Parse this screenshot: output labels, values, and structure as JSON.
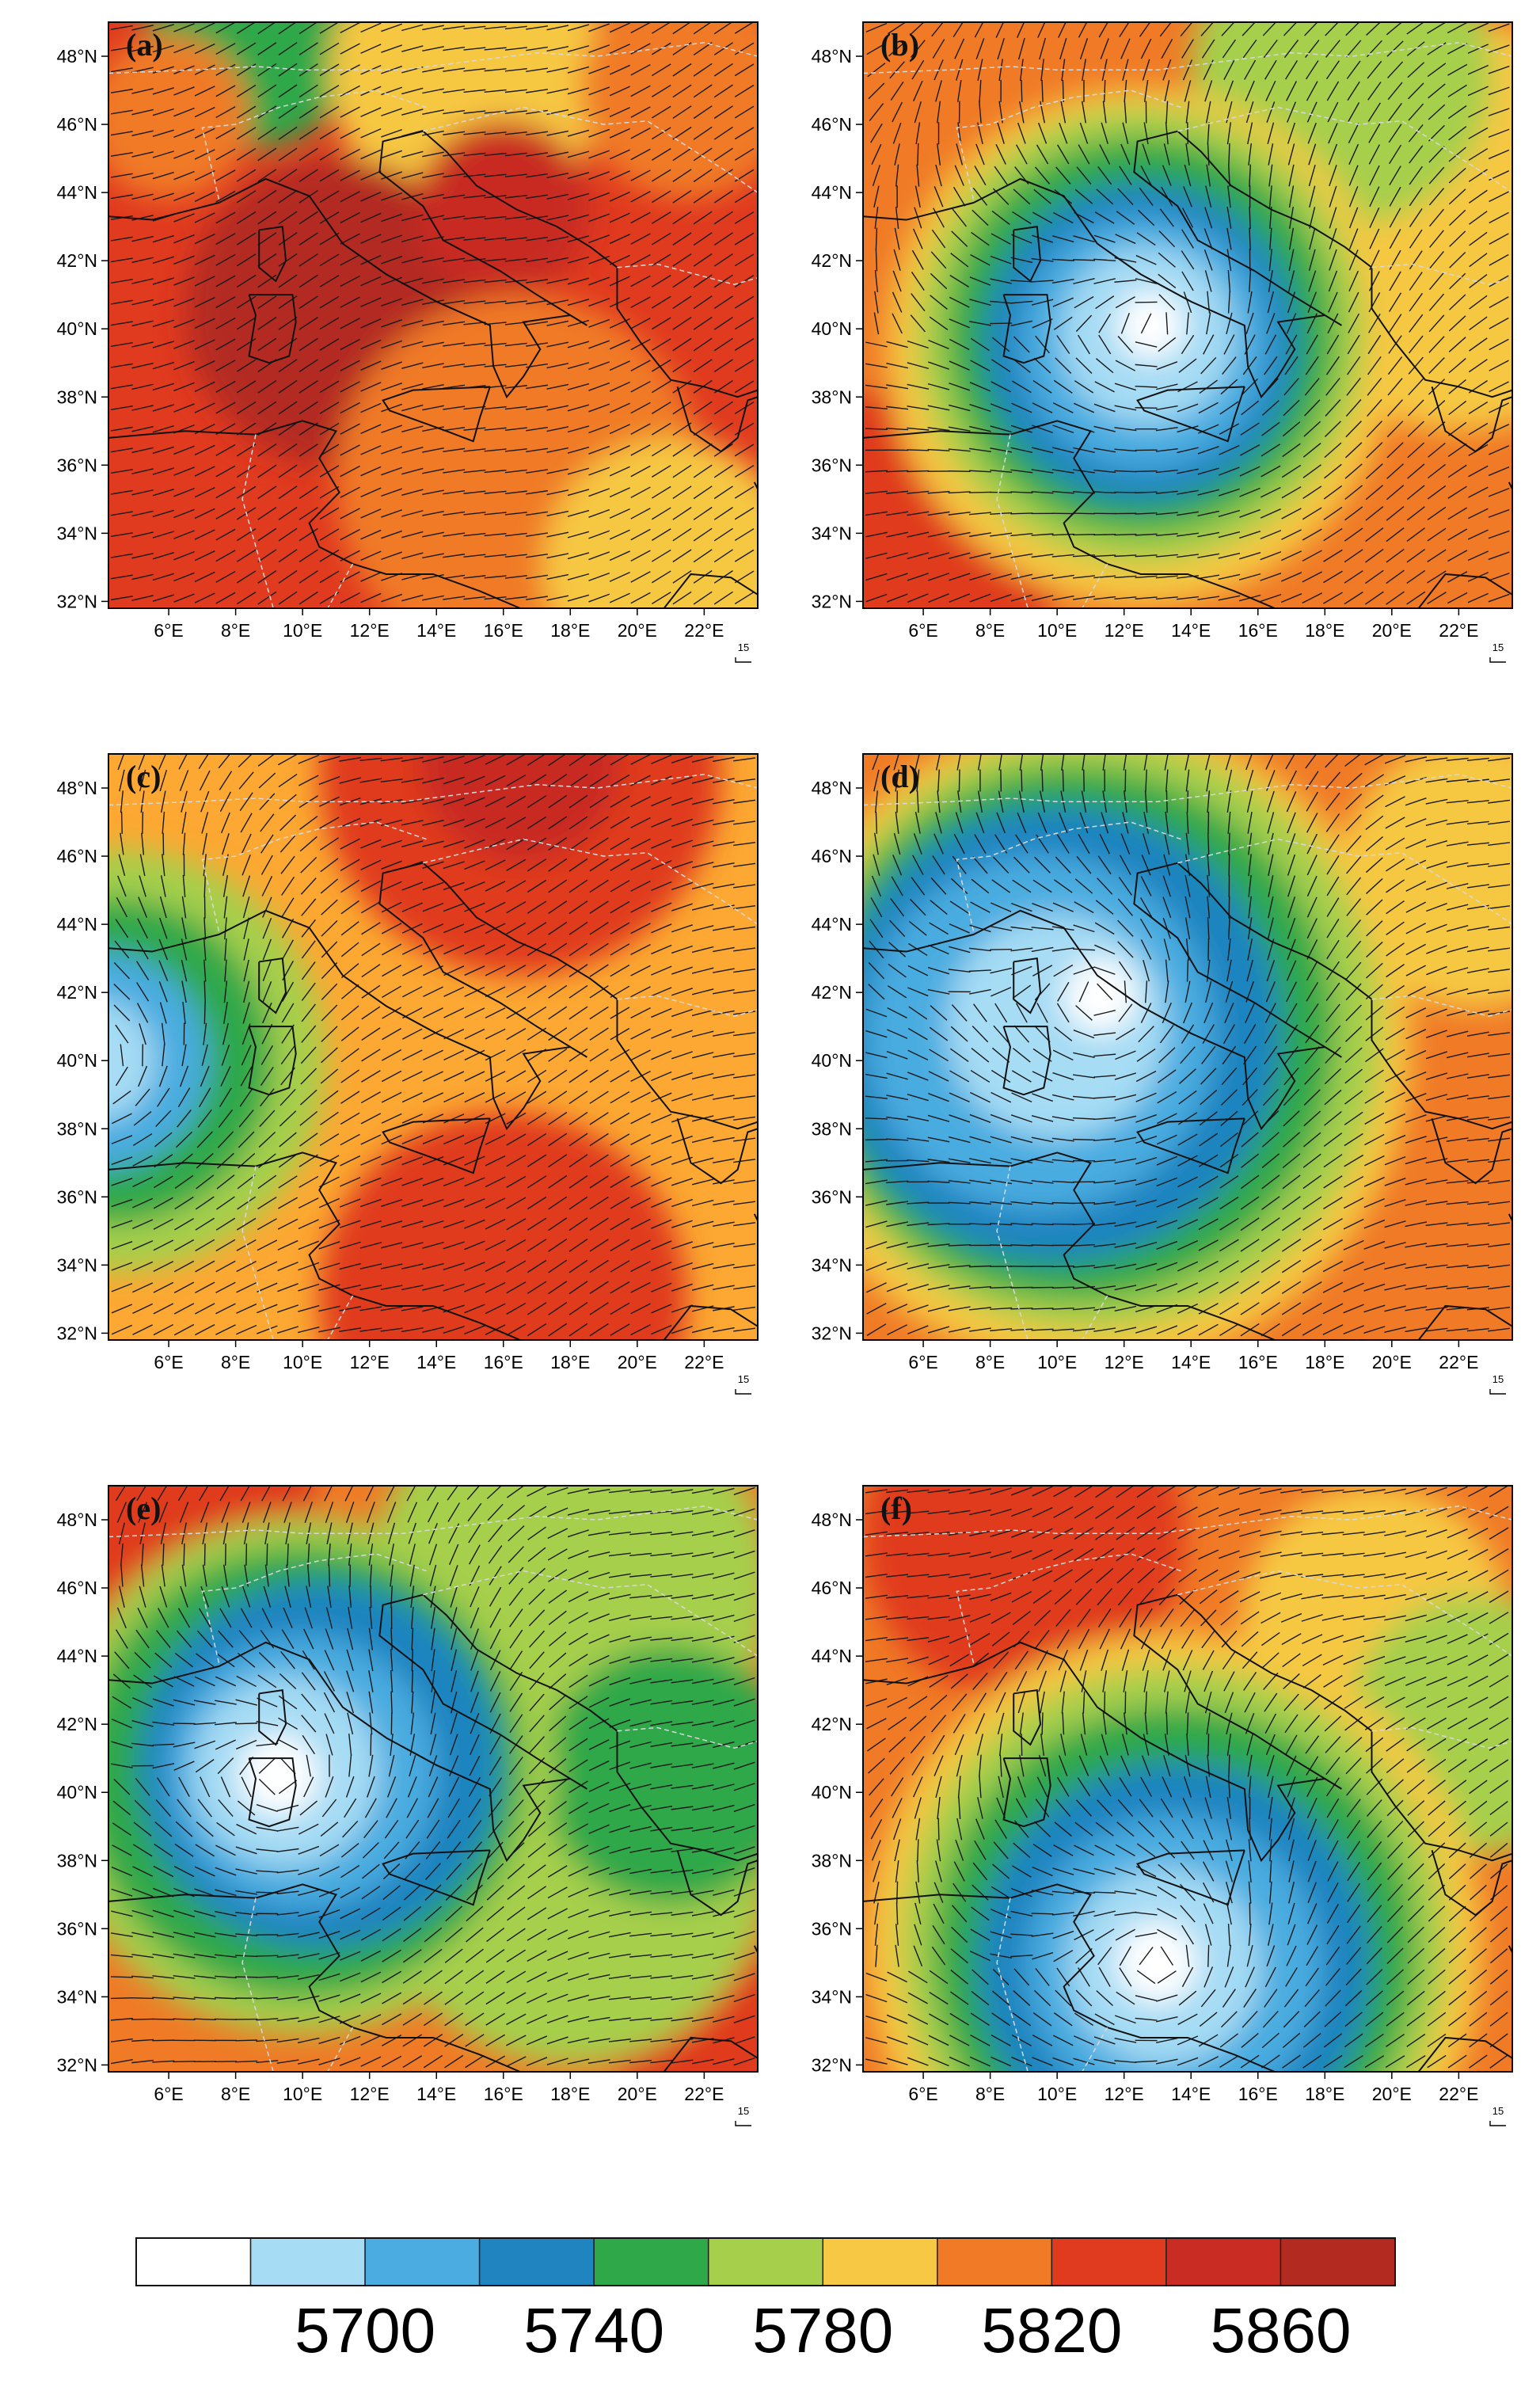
{
  "figure": {
    "x_ticks": [
      "6°E",
      "8°E",
      "10°E",
      "12°E",
      "14°E",
      "16°E",
      "18°E",
      "20°E",
      "22°E"
    ],
    "y_ticks": [
      "48°N",
      "46°N",
      "44°N",
      "42°N",
      "40°N",
      "38°N",
      "36°N",
      "34°N",
      "32°N"
    ],
    "reference_vector_label": "15",
    "panels": [
      {
        "label": "(a)",
        "background": "#e03a1f",
        "blobs": [
          {
            "lon": 8.5,
            "lat": 48.5,
            "r": 3.2,
            "color": "#2fa84a"
          },
          {
            "lon": 6.0,
            "lat": 46.2,
            "r": 2.4,
            "color": "#f07a26"
          },
          {
            "lon": 15.0,
            "lat": 47.5,
            "r": 4.2,
            "color": "#f6c843"
          },
          {
            "lon": 21.5,
            "lat": 47.0,
            "r": 3.2,
            "color": "#f07a26"
          },
          {
            "lon": 11.0,
            "lat": 40.5,
            "r": 4.5,
            "color": "#b32a20"
          },
          {
            "lon": 16.0,
            "lat": 43.5,
            "r": 2.6,
            "color": "#c82c22"
          },
          {
            "lon": 16.5,
            "lat": 35.5,
            "r": 5.5,
            "color": "#f07a26"
          },
          {
            "lon": 21.0,
            "lat": 33.0,
            "r": 3.8,
            "color": "#f6c843"
          }
        ]
      },
      {
        "label": "(b)",
        "background": "#f07a26",
        "blobs": [
          {
            "lon": 22.0,
            "lat": 43.0,
            "r": 6.0,
            "color": "#f6c843"
          },
          {
            "lon": 18.5,
            "lat": 47.5,
            "r": 4.5,
            "color": "#a6cf4c"
          },
          {
            "lon": 6.0,
            "lat": 34.0,
            "r": 4.5,
            "color": "#e03a1f"
          },
          {
            "lon": 12.5,
            "lat": 39.5,
            "r": 7.6,
            "color": "#f6c843"
          },
          {
            "lon": 12.5,
            "lat": 39.8,
            "r": 6.7,
            "color": "#a6cf4c"
          },
          {
            "lon": 12.5,
            "lat": 39.8,
            "r": 5.8,
            "color": "#2fa84a"
          },
          {
            "lon": 12.5,
            "lat": 39.6,
            "r": 4.7,
            "color": "#1f84c0"
          },
          {
            "lon": 12.6,
            "lat": 39.6,
            "r": 3.7,
            "color": "#4aace0"
          },
          {
            "lon": 12.7,
            "lat": 39.8,
            "r": 2.6,
            "color": "#a6dcf4"
          },
          {
            "lon": 12.8,
            "lat": 40.1,
            "r": 1.0,
            "color": "#ffffff"
          }
        ]
      },
      {
        "label": "(c)",
        "background": "#fca832",
        "blobs": [
          {
            "lon": 16.5,
            "lat": 48.5,
            "r": 6.0,
            "color": "#e03a1f"
          },
          {
            "lon": 16.5,
            "lat": 48.8,
            "r": 3.0,
            "color": "#c82c22"
          },
          {
            "lon": 16.0,
            "lat": 33.0,
            "r": 5.5,
            "color": "#e03a1f"
          },
          {
            "lon": 4.5,
            "lat": 40.0,
            "r": 6.2,
            "color": "#a6cf4c"
          },
          {
            "lon": 4.3,
            "lat": 40.0,
            "r": 4.8,
            "color": "#2fa84a"
          },
          {
            "lon": 4.0,
            "lat": 40.0,
            "r": 3.2,
            "color": "#4aace0"
          },
          {
            "lon": 3.8,
            "lat": 40.0,
            "r": 1.8,
            "color": "#a6dcf4"
          }
        ]
      },
      {
        "label": "(d)",
        "background": "#f07a26",
        "blobs": [
          {
            "lon": 22.5,
            "lat": 45.5,
            "r": 4.0,
            "color": "#f6c843"
          },
          {
            "lon": 11.0,
            "lat": 40.5,
            "r": 9.6,
            "color": "#f6c843"
          },
          {
            "lon": 11.0,
            "lat": 40.8,
            "r": 8.7,
            "color": "#a6cf4c"
          },
          {
            "lon": 10.5,
            "lat": 40.8,
            "r": 7.8,
            "color": "#2fa84a"
          },
          {
            "lon": 10.0,
            "lat": 40.8,
            "r": 6.7,
            "color": "#1f84c0"
          },
          {
            "lon": 9.5,
            "lat": 40.8,
            "r": 5.2,
            "color": "#4aace0"
          },
          {
            "lon": 10.0,
            "lat": 41.0,
            "r": 3.3,
            "color": "#a6dcf4"
          },
          {
            "lon": 11.3,
            "lat": 41.9,
            "r": 1.1,
            "color": "#ffffff"
          }
        ]
      },
      {
        "label": "(e)",
        "background": "#f07a26",
        "blobs": [
          {
            "lon": 6.0,
            "lat": 48.0,
            "r": 4.5,
            "color": "#e03a1f"
          },
          {
            "lon": 22.0,
            "lat": 33.0,
            "r": 3.0,
            "color": "#e03a1f"
          },
          {
            "lon": 18.0,
            "lat": 46.0,
            "r": 6.0,
            "color": "#a6cf4c"
          },
          {
            "lon": 18.0,
            "lat": 38.0,
            "r": 6.0,
            "color": "#a6cf4c"
          },
          {
            "lon": 21.0,
            "lat": 40.5,
            "r": 3.8,
            "color": "#2fa84a"
          },
          {
            "lon": 10.0,
            "lat": 40.5,
            "r": 7.6,
            "color": "#a6cf4c"
          },
          {
            "lon": 10.0,
            "lat": 40.6,
            "r": 6.6,
            "color": "#2fa84a"
          },
          {
            "lon": 10.5,
            "lat": 40.8,
            "r": 5.4,
            "color": "#1f84c0"
          },
          {
            "lon": 10.0,
            "lat": 40.6,
            "r": 4.0,
            "color": "#4aace0"
          },
          {
            "lon": 9.5,
            "lat": 40.6,
            "r": 2.8,
            "color": "#a6dcf4"
          },
          {
            "lon": 9.3,
            "lat": 40.5,
            "r": 1.2,
            "color": "#ffffff"
          }
        ]
      },
      {
        "label": "(f)",
        "background": "#f07a26",
        "blobs": [
          {
            "lon": 9.0,
            "lat": 47.5,
            "r": 4.8,
            "color": "#e03a1f"
          },
          {
            "lon": 19.5,
            "lat": 45.0,
            "r": 4.0,
            "color": "#f6c843"
          },
          {
            "lon": 22.5,
            "lat": 42.0,
            "r": 3.8,
            "color": "#a6cf4c"
          },
          {
            "lon": 13.5,
            "lat": 35.5,
            "r": 9.2,
            "color": "#f6c843"
          },
          {
            "lon": 13.5,
            "lat": 35.5,
            "r": 8.2,
            "color": "#a6cf4c"
          },
          {
            "lon": 13.5,
            "lat": 35.3,
            "r": 7.2,
            "color": "#2fa84a"
          },
          {
            "lon": 13.5,
            "lat": 35.0,
            "r": 5.9,
            "color": "#1f84c0"
          },
          {
            "lon": 13.5,
            "lat": 34.9,
            "r": 4.4,
            "color": "#4aace0"
          },
          {
            "lon": 13.2,
            "lat": 34.9,
            "r": 2.9,
            "color": "#a6dcf4"
          },
          {
            "lon": 13.0,
            "lat": 35.0,
            "r": 1.2,
            "color": "#ffffff"
          }
        ]
      }
    ]
  },
  "colorbar": {
    "colors": [
      "#ffffff",
      "#a6dcf4",
      "#4aace0",
      "#1f84c0",
      "#2fa84a",
      "#a6cf4c",
      "#f6c843",
      "#f07a26",
      "#e03a1f",
      "#c82c22",
      "#b32a20"
    ],
    "labels": [
      {
        "text": "5700",
        "boundary": 2
      },
      {
        "text": "5740",
        "boundary": 4
      },
      {
        "text": "5780",
        "boundary": 6
      },
      {
        "text": "5820",
        "boundary": 8
      },
      {
        "text": "5860",
        "boundary": 10
      }
    ]
  }
}
